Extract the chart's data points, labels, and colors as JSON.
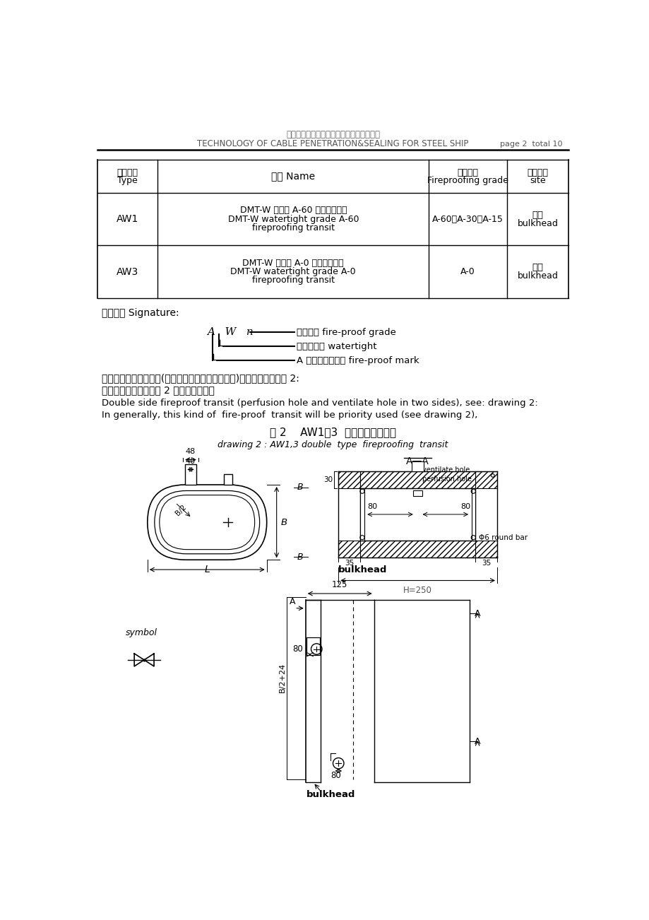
{
  "title_cn": "船舶电装预制件制作及电缆贯穿件隔堵工艺",
  "title_en": "TECHNOLOGY OF CABLE PENETRATION&SEALING FOR STEEL SHIP",
  "page_info": "page 2  total 10",
  "bg_color": "#ffffff"
}
